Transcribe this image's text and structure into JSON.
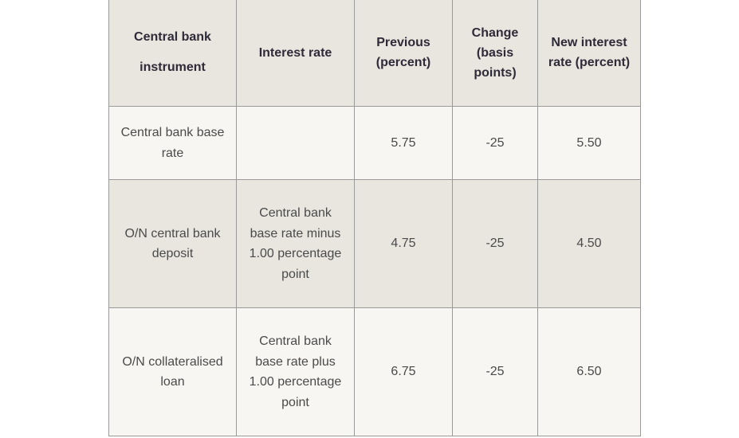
{
  "table": {
    "headers": [
      "Central bank instrument",
      "Interest rate",
      "Previous (percent)",
      "Change (basis points)",
      "New interest rate (percent)"
    ],
    "rows": [
      {
        "instrument": "Central bank base rate",
        "interest_rate": "",
        "previous": "5.75",
        "change": "-25",
        "new_rate": "5.50"
      },
      {
        "instrument": "O/N central bank deposit",
        "interest_rate": "Central bank base rate minus 1.00 percentage point",
        "previous": "4.75",
        "change": "-25",
        "new_rate": "4.50"
      },
      {
        "instrument": "O/N collateralised loan",
        "interest_rate": "Central bank base rate plus 1.00 percentage point",
        "previous": "6.75",
        "change": "-25",
        "new_rate": "6.50"
      }
    ]
  }
}
